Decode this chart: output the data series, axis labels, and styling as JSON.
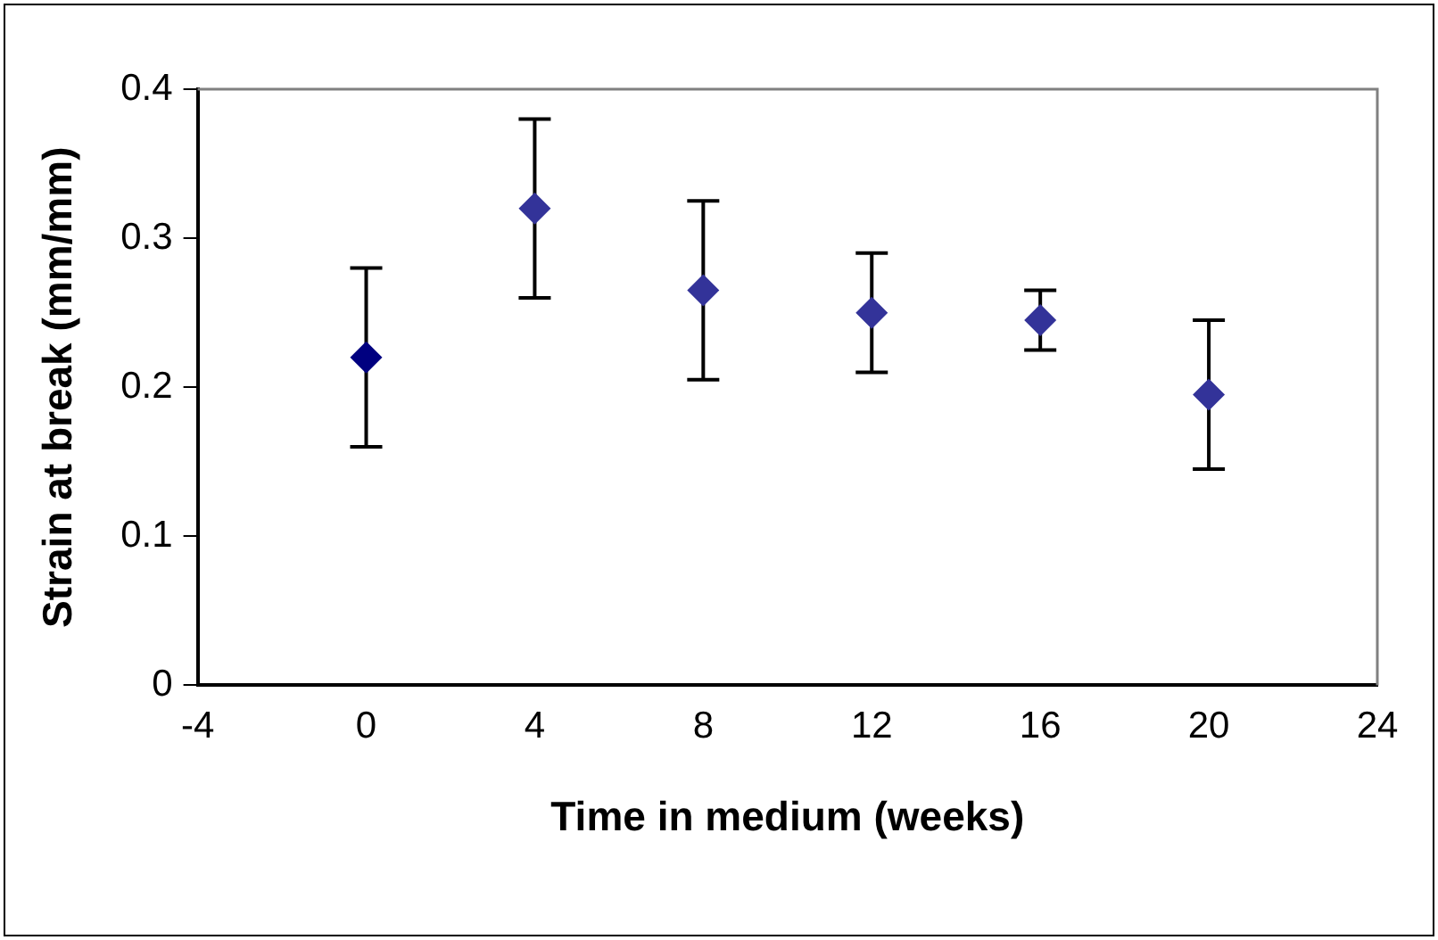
{
  "chart_data": {
    "type": "scatter",
    "xlabel": "Time in medium (weeks)",
    "ylabel": "Strain at break (mm/mm)",
    "x": [
      0,
      4,
      8,
      12,
      16,
      20
    ],
    "values": [
      0.22,
      0.32,
      0.265,
      0.25,
      0.245,
      0.195
    ],
    "errors": [
      0.06,
      0.06,
      0.06,
      0.04,
      0.02,
      0.05
    ],
    "colors": [
      "#000080",
      "#333399",
      "#333399",
      "#333399",
      "#333399",
      "#333399"
    ],
    "xlim": [
      -4,
      24
    ],
    "xticks": [
      -4,
      0,
      4,
      8,
      12,
      16,
      20,
      24
    ],
    "ylim": [
      0,
      0.4
    ],
    "yticks": [
      0,
      0.1,
      0.2,
      0.3,
      0.4
    ],
    "marker": "diamond",
    "grid": false,
    "legend": false
  }
}
